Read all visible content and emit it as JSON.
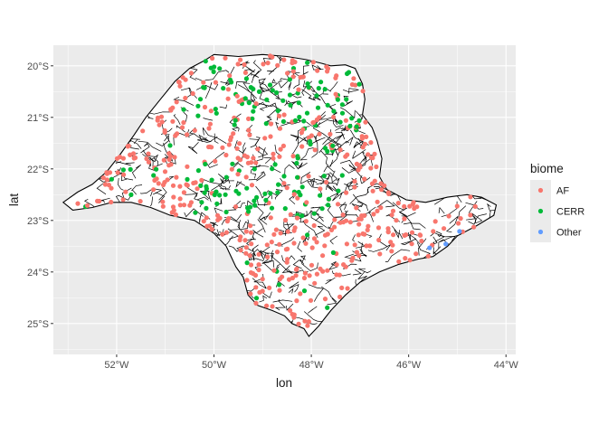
{
  "chart_data": {
    "type": "scatter",
    "xlabel": "lon",
    "ylabel": "lat",
    "xlim": [
      -53.3,
      -43.8
    ],
    "ylim": [
      -25.6,
      -19.6
    ],
    "x_ticks": [
      {
        "value": -52,
        "label": "52°W"
      },
      {
        "value": -50,
        "label": "50°W"
      },
      {
        "value": -48,
        "label": "48°W"
      },
      {
        "value": -46,
        "label": "46°W"
      },
      {
        "value": -44,
        "label": "44°W"
      }
    ],
    "y_ticks": [
      {
        "value": -20,
        "label": "20°S"
      },
      {
        "value": -21,
        "label": "21°S"
      },
      {
        "value": -22,
        "label": "22°S"
      },
      {
        "value": -23,
        "label": "23°S"
      },
      {
        "value": -24,
        "label": "24°S"
      },
      {
        "value": -25,
        "label": "25°S"
      }
    ],
    "grid": true,
    "background": "#ebebeb",
    "legend": {
      "title": "biome",
      "position": "right",
      "entries": [
        {
          "label": "AF",
          "color": "#f8766d"
        },
        {
          "label": "CERR",
          "color": "#00ba38"
        },
        {
          "label": "Other",
          "color": "#619cff"
        }
      ]
    },
    "outline": [
      [
        -53.1,
        -22.65
      ],
      [
        -52.8,
        -22.45
      ],
      [
        -52.5,
        -22.3
      ],
      [
        -52.2,
        -22.05
      ],
      [
        -51.95,
        -21.75
      ],
      [
        -51.65,
        -21.35
      ],
      [
        -51.4,
        -21.0
      ],
      [
        -51.1,
        -20.65
      ],
      [
        -50.8,
        -20.3
      ],
      [
        -50.5,
        -20.05
      ],
      [
        -50.2,
        -19.9
      ],
      [
        -50.0,
        -19.78
      ],
      [
        -49.5,
        -19.82
      ],
      [
        -49.0,
        -19.78
      ],
      [
        -48.5,
        -19.82
      ],
      [
        -48.1,
        -19.88
      ],
      [
        -47.8,
        -19.95
      ],
      [
        -47.6,
        -20.0
      ],
      [
        -47.3,
        -19.98
      ],
      [
        -47.1,
        -20.05
      ],
      [
        -46.95,
        -20.35
      ],
      [
        -46.9,
        -20.65
      ],
      [
        -46.95,
        -20.95
      ],
      [
        -46.75,
        -21.2
      ],
      [
        -46.65,
        -21.45
      ],
      [
        -46.55,
        -21.8
      ],
      [
        -46.6,
        -22.15
      ],
      [
        -46.45,
        -22.4
      ],
      [
        -46.05,
        -22.6
      ],
      [
        -45.65,
        -22.65
      ],
      [
        -45.2,
        -22.55
      ],
      [
        -44.8,
        -22.5
      ],
      [
        -44.5,
        -22.55
      ],
      [
        -44.2,
        -22.7
      ],
      [
        -44.25,
        -22.9
      ],
      [
        -44.6,
        -23.1
      ],
      [
        -45.0,
        -23.3
      ],
      [
        -45.2,
        -23.5
      ],
      [
        -45.5,
        -23.7
      ],
      [
        -45.8,
        -23.75
      ],
      [
        -46.2,
        -23.85
      ],
      [
        -46.6,
        -24.0
      ],
      [
        -47.0,
        -24.2
      ],
      [
        -47.3,
        -24.45
      ],
      [
        -47.6,
        -24.75
      ],
      [
        -47.85,
        -25.05
      ],
      [
        -48.05,
        -25.25
      ],
      [
        -48.15,
        -25.1
      ],
      [
        -48.4,
        -25.0
      ],
      [
        -48.55,
        -24.85
      ],
      [
        -48.8,
        -24.75
      ],
      [
        -49.1,
        -24.65
      ],
      [
        -49.3,
        -24.45
      ],
      [
        -49.4,
        -24.1
      ],
      [
        -49.55,
        -23.9
      ],
      [
        -49.75,
        -23.5
      ],
      [
        -50.0,
        -23.25
      ],
      [
        -50.4,
        -23.0
      ],
      [
        -50.9,
        -22.9
      ],
      [
        -51.3,
        -22.75
      ],
      [
        -51.7,
        -22.65
      ],
      [
        -52.1,
        -22.65
      ],
      [
        -52.5,
        -22.75
      ],
      [
        -52.9,
        -22.8
      ],
      [
        -53.1,
        -22.65
      ]
    ]
  }
}
